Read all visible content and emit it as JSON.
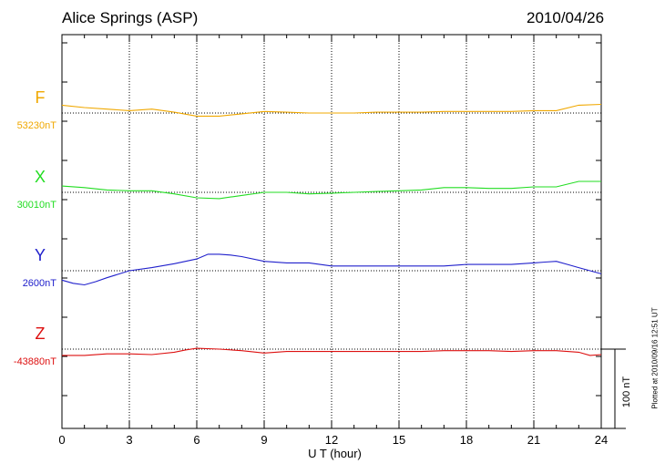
{
  "header": {
    "station": "Alice Springs (ASP)",
    "date": "2010/04/26"
  },
  "scale_bar": {
    "label": "100 nT"
  },
  "plotted_note": "Plotted at 2010/09/16 12:51  UT",
  "chart_data": {
    "type": "line",
    "xlabel": "U T (hour)",
    "xlim": [
      0,
      24
    ],
    "xticks": [
      "0",
      "3",
      "6",
      "9",
      "12",
      "15",
      "18",
      "21",
      "24"
    ],
    "grid": true,
    "series": [
      {
        "name": "F",
        "baseline_label": "53230nT",
        "baseline": 53230,
        "color": "#f0a800",
        "x": [
          0,
          1,
          2,
          3,
          4,
          5,
          6,
          7,
          8,
          9,
          10,
          11,
          12,
          13,
          14,
          15,
          16,
          17,
          18,
          19,
          20,
          21,
          22,
          23,
          24
        ],
        "values": [
          53240,
          53237,
          53235,
          53233,
          53235,
          53231,
          53226,
          53226,
          53229,
          53232,
          53231,
          53230,
          53230,
          53230,
          53231,
          53231,
          53231,
          53232,
          53232,
          53232,
          53232,
          53233,
          53233,
          53240,
          53241
        ]
      },
      {
        "name": "X",
        "baseline_label": "30010nT",
        "baseline": 30010,
        "color": "#22dd22",
        "x": [
          0,
          1,
          2,
          3,
          4,
          5,
          6,
          7,
          8,
          9,
          10,
          11,
          12,
          13,
          14,
          15,
          16,
          17,
          18,
          19,
          20,
          21,
          22,
          23,
          24
        ],
        "values": [
          30018,
          30016,
          30013,
          30012,
          30012,
          30008,
          30003,
          30002,
          30006,
          30010,
          30010,
          30008,
          30009,
          30010,
          30011,
          30012,
          30013,
          30016,
          30016,
          30015,
          30015,
          30017,
          30017,
          30024,
          30024
        ]
      },
      {
        "name": "Y",
        "baseline_label": "2600nT",
        "baseline": 2600,
        "color": "#2020cc",
        "x": [
          0,
          0.5,
          1,
          1.5,
          2,
          3,
          4,
          5,
          6,
          6.5,
          7,
          7.5,
          8,
          9,
          10,
          11,
          12,
          13,
          14,
          15,
          16,
          17,
          18,
          19,
          20,
          21,
          21.5,
          22,
          22.5,
          23,
          23.5,
          24
        ],
        "values": [
          2588,
          2584,
          2582,
          2586,
          2591,
          2600,
          2604,
          2609,
          2615,
          2621,
          2621,
          2620,
          2618,
          2612,
          2610,
          2610,
          2606,
          2606,
          2606,
          2606,
          2606,
          2606,
          2608,
          2608,
          2608,
          2610,
          2611,
          2612,
          2608,
          2604,
          2600,
          2596
        ]
      },
      {
        "name": "Z",
        "baseline_label": "-43880nT",
        "baseline": -43880,
        "color": "#dd1010",
        "x": [
          0,
          1,
          2,
          3,
          4,
          5,
          5.5,
          6,
          7,
          8,
          9,
          10,
          11,
          12,
          13,
          14,
          15,
          16,
          17,
          18,
          19,
          20,
          21,
          22,
          23,
          23.5,
          24
        ],
        "values": [
          -43888,
          -43888,
          -43886,
          -43886,
          -43887,
          -43884,
          -43881,
          -43879,
          -43880,
          -43882,
          -43885,
          -43883,
          -43883,
          -43883,
          -43883,
          -43883,
          -43883,
          -43883,
          -43882,
          -43882,
          -43882,
          -43883,
          -43882,
          -43882,
          -43884,
          -43888,
          -43887
        ]
      }
    ]
  }
}
